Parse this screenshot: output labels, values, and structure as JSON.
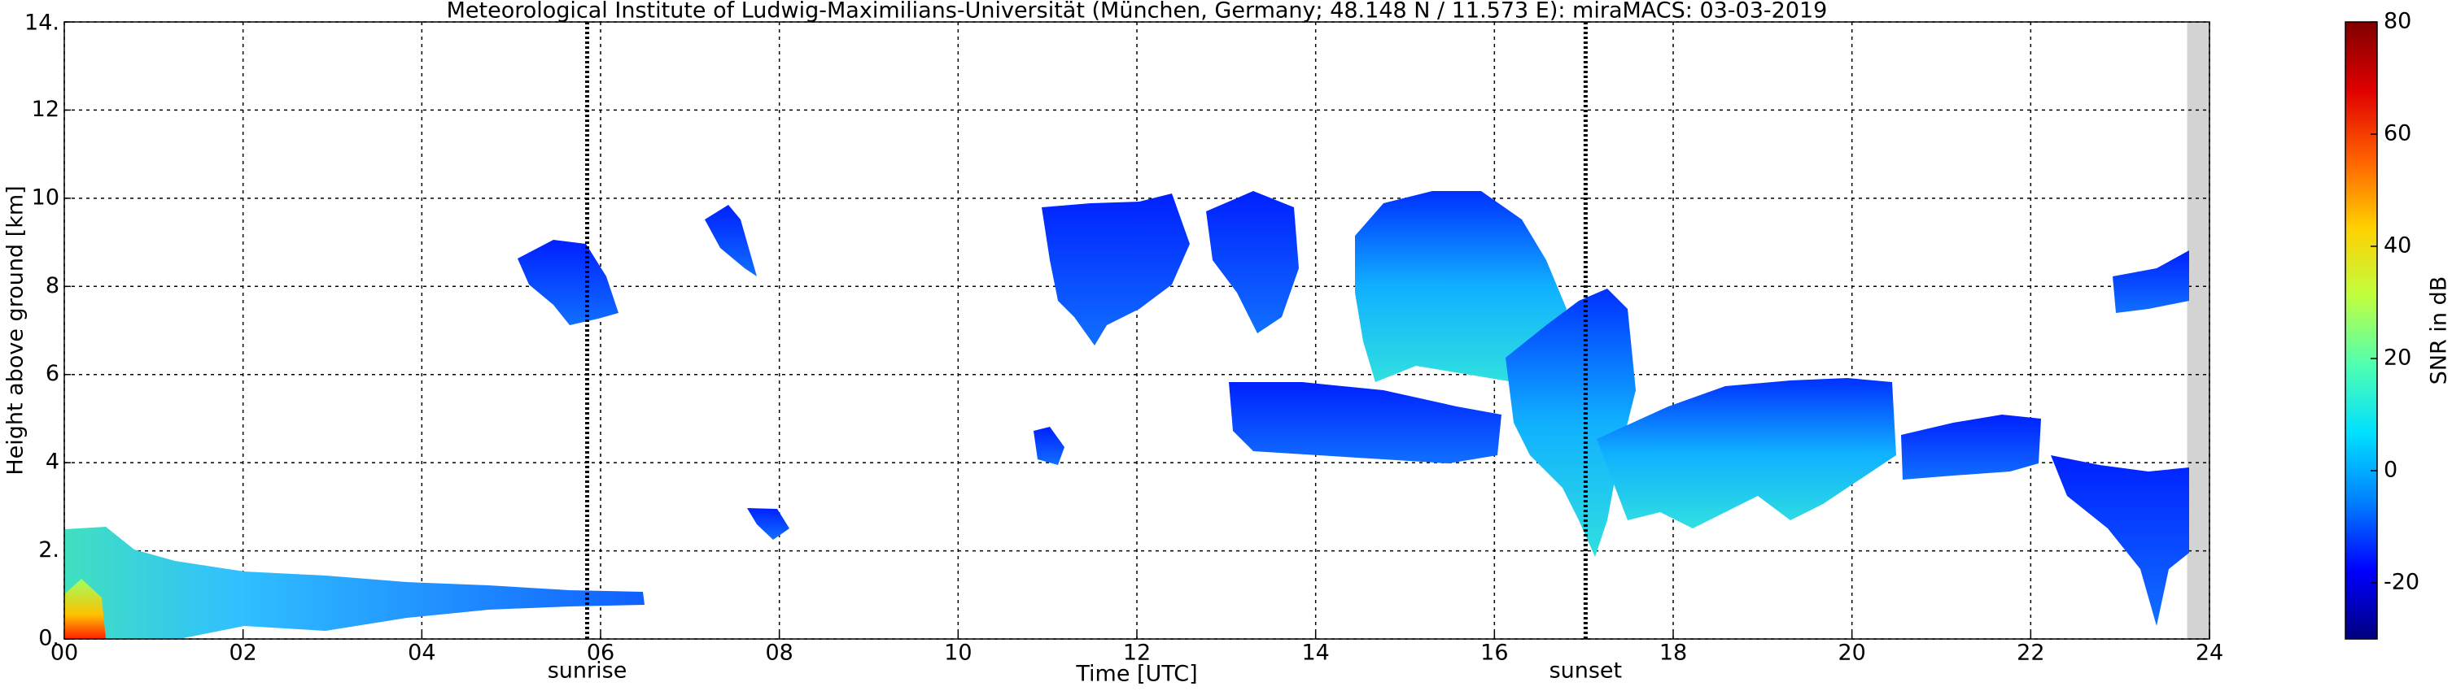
{
  "chart_data": {
    "type": "time-height",
    "title": "Meteorological Institute of Ludwig-Maximilians-Universität (München, Germany; 48.148 N / 11.573 E):    miraMACS: 03-03-2019",
    "xlabel": "Time [UTC]",
    "ylabel": "Height above ground [km]",
    "xlim": [
      0,
      24
    ],
    "xticks": [
      {
        "value": 0,
        "label": "00"
      },
      {
        "value": 2,
        "label": "02"
      },
      {
        "value": 4,
        "label": "04"
      },
      {
        "value": 6,
        "label": "06"
      },
      {
        "value": 8,
        "label": "08"
      },
      {
        "value": 10,
        "label": "10"
      },
      {
        "value": 12,
        "label": "12"
      },
      {
        "value": 14,
        "label": "14"
      },
      {
        "value": 16,
        "label": "16"
      },
      {
        "value": 18,
        "label": "18"
      },
      {
        "value": 20,
        "label": "20"
      },
      {
        "value": 22,
        "label": "22"
      },
      {
        "value": 24,
        "label": "24"
      }
    ],
    "ylim": [
      0,
      14
    ],
    "yticks": [
      {
        "value": 0,
        "label": "0."
      },
      {
        "value": 2,
        "label": "2."
      },
      {
        "value": 4,
        "label": "4"
      },
      {
        "value": 6,
        "label": "6"
      },
      {
        "value": 8,
        "label": "8"
      },
      {
        "value": 10,
        "label": "10"
      },
      {
        "value": 12,
        "label": "12"
      },
      {
        "value": 14,
        "label": "14."
      }
    ],
    "grid": true,
    "shaded_xlim": [
      23.75,
      24
    ],
    "annotations": [
      {
        "text": "sunrise",
        "x": 5.85
      },
      {
        "text": "sunset",
        "x": 17.02
      }
    ],
    "colorbar": {
      "label": "SNR in dB",
      "lim": [
        -30,
        80
      ],
      "ticks": [
        -20,
        0,
        20,
        40,
        60,
        80
      ],
      "colors": [
        "#00007f",
        "#0000ff",
        "#0080ff",
        "#00e0ff",
        "#50ffb0",
        "#c0ff40",
        "#ffd000",
        "#ff6000",
        "#e00000",
        "#800000"
      ]
    }
  }
}
